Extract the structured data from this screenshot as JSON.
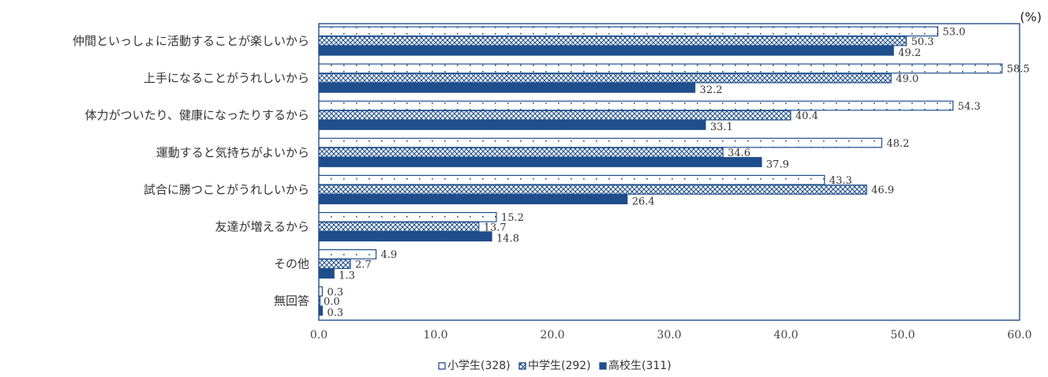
{
  "chart_data": {
    "type": "bar",
    "orientation": "horizontal",
    "unit": "(%)",
    "categories": [
      "仲間といっしょに活動することが楽しいから",
      "上手になることがうれしいから",
      "体力がついたり、健康になったりするから",
      "運動すると気持ちがよいから",
      "試合に勝つことがうれしいから",
      "友達が増えるから",
      "その他",
      "無回答"
    ],
    "series": [
      {
        "name": "小学生(328)",
        "values": [
          53.0,
          58.5,
          54.3,
          48.2,
          43.3,
          15.2,
          4.9,
          0.3
        ],
        "labels": [
          "53.0",
          "58.5",
          "54.3",
          "48.2",
          "43.3",
          "15.2",
          "4.9",
          "0.3"
        ]
      },
      {
        "name": "中学生(292)",
        "values": [
          50.3,
          49.0,
          40.4,
          34.6,
          46.9,
          13.7,
          2.7,
          0.0
        ],
        "labels": [
          "50.3",
          "49.0",
          "40.4",
          "34.6",
          "46.9",
          "13.7",
          "2.7",
          "0.0"
        ]
      },
      {
        "name": "高校生(311)",
        "values": [
          49.2,
          32.2,
          33.1,
          37.9,
          26.4,
          14.8,
          1.3,
          0.3
        ],
        "labels": [
          "49.2",
          "32.2",
          "33.1",
          "37.9",
          "26.4",
          "14.8",
          "1.3",
          "0.3"
        ]
      }
    ],
    "xlim": [
      0,
      60
    ],
    "xticks": [
      "0.0",
      "10.0",
      "20.0",
      "30.0",
      "40.0",
      "50.0",
      "60.0"
    ],
    "grid": false,
    "legend_position": "bottom",
    "colors": {
      "primary": "#1f4e8c",
      "pattern_fill": "#ffffff"
    }
  }
}
